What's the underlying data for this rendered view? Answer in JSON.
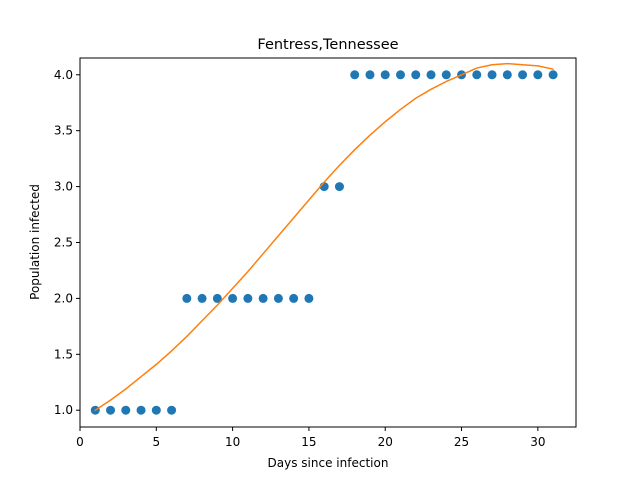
{
  "chart_data": {
    "type": "scatter",
    "title": "Fentress,Tennessee",
    "xlabel": "Days since infection",
    "ylabel": "Population infected",
    "xlim": [
      0.0,
      32.5
    ],
    "ylim": [
      0.85,
      4.15
    ],
    "xticks": [
      0,
      5,
      10,
      15,
      20,
      25,
      30
    ],
    "xtick_labels": [
      "0",
      "5",
      "10",
      "15",
      "20",
      "25",
      "30"
    ],
    "yticks": [
      1.0,
      1.5,
      2.0,
      2.5,
      3.0,
      3.5,
      4.0
    ],
    "ytick_labels": [
      "1.0",
      "1.5",
      "2.0",
      "2.5",
      "3.0",
      "3.5",
      "4.0"
    ],
    "grid": false,
    "series": [
      {
        "kind": "scatter",
        "color": "#1f77b4",
        "x": [
          1,
          2,
          3,
          4,
          5,
          6,
          7,
          8,
          9,
          10,
          11,
          12,
          13,
          14,
          15,
          16,
          17,
          18,
          19,
          20,
          21,
          22,
          23,
          24,
          25,
          26,
          27,
          28,
          29,
          30,
          31
        ],
        "y": [
          1,
          1,
          1,
          1,
          1,
          1,
          2,
          2,
          2,
          2,
          2,
          2,
          2,
          2,
          2,
          3,
          3,
          4,
          4,
          4,
          4,
          4,
          4,
          4,
          4,
          4,
          4,
          4,
          4,
          4,
          4
        ]
      },
      {
        "kind": "line",
        "color": "#ff7f0e",
        "x": [
          1,
          2,
          3,
          4,
          5,
          6,
          7,
          8,
          9,
          10,
          11,
          12,
          13,
          14,
          15,
          16,
          17,
          18,
          19,
          20,
          21,
          22,
          23,
          24,
          25,
          26,
          27,
          28,
          29,
          30,
          31
        ],
        "y": [
          1.0,
          1.09,
          1.19,
          1.3,
          1.41,
          1.53,
          1.66,
          1.8,
          1.94,
          2.09,
          2.24,
          2.4,
          2.56,
          2.72,
          2.88,
          3.04,
          3.19,
          3.33,
          3.46,
          3.58,
          3.69,
          3.79,
          3.87,
          3.94,
          4.0,
          4.06,
          4.09,
          4.1,
          4.09,
          4.08,
          4.05
        ]
      }
    ]
  }
}
